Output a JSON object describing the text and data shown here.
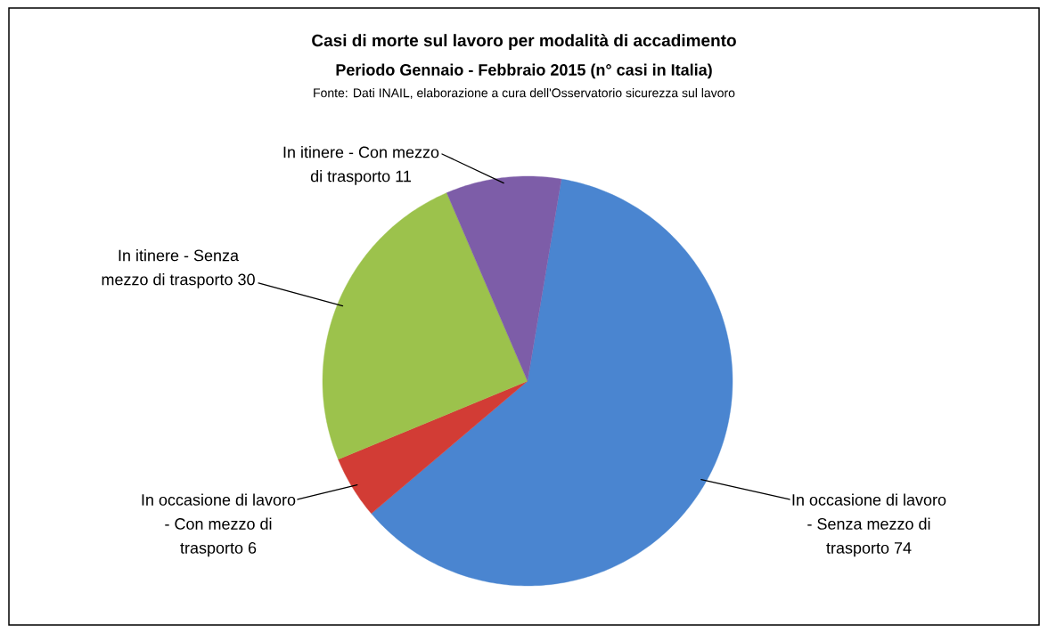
{
  "chart_data": {
    "type": "pie",
    "title": "Casi di morte sul lavoro per modalità di accadimento",
    "subtitle": "Periodo Gennaio - Febbraio 2015 (n° casi in Italia)",
    "annotations": [
      "Fonte: Dati INAIL, elaborazione a cura dell'Osservatorio sicurezza sul lavoro"
    ],
    "categories": [
      "In occasione di lavoro - Senza mezzo di trasporto",
      "In occasione di lavoro - Con mezzo di trasporto",
      "In itinere - Senza mezzo di trasporto",
      "In itinere - Con mezzo di trasporto"
    ],
    "values": [
      74,
      6,
      30,
      11
    ],
    "colors": [
      "#4a85d0",
      "#d23c35",
      "#9cc24c",
      "#7d5da8"
    ],
    "data_labels": true
  }
}
